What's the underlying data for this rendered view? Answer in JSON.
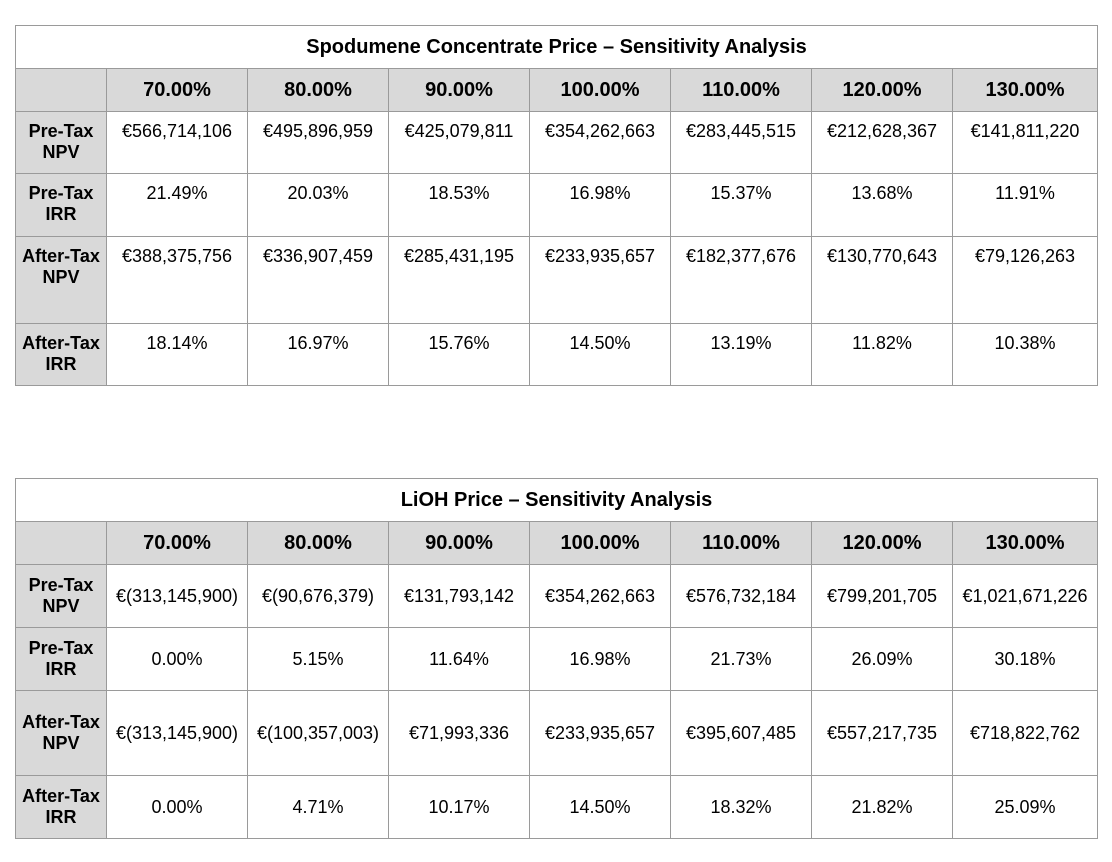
{
  "columns": [
    "70.00%",
    "80.00%",
    "90.00%",
    "100.00%",
    "110.00%",
    "120.00%",
    "130.00%"
  ],
  "row_labels": {
    "pre_tax_npv": "Pre-Tax NPV",
    "pre_tax_irr": "Pre-Tax IRR",
    "after_tax_npv": "After-Tax NPV",
    "after_tax_irr": "After-Tax IRR"
  },
  "table1": {
    "title": "Spodumene Concentrate Price – Sensitivity Analysis",
    "pre_tax_npv": [
      "€566,714,106",
      "€495,896,959",
      "€425,079,811",
      "€354,262,663",
      "€283,445,515",
      "€212,628,367",
      "€141,811,220"
    ],
    "pre_tax_irr": [
      "21.49%",
      "20.03%",
      "18.53%",
      "16.98%",
      "15.37%",
      "13.68%",
      "11.91%"
    ],
    "after_tax_npv": [
      "€388,375,756",
      "€336,907,459",
      "€285,431,195",
      "€233,935,657",
      "€182,377,676",
      "€130,770,643",
      "€79,126,263"
    ],
    "after_tax_irr": [
      "18.14%",
      "16.97%",
      "15.76%",
      "14.50%",
      "13.19%",
      "11.82%",
      "10.38%"
    ]
  },
  "table2": {
    "title": "LiOH Price – Sensitivity Analysis",
    "pre_tax_npv": [
      "€(313,145,900)",
      "€(90,676,379)",
      "€131,793,142",
      "€354,262,663",
      "€576,732,184",
      "€799,201,705",
      "€1,021,671,226"
    ],
    "pre_tax_irr": [
      "0.00%",
      "5.15%",
      "11.64%",
      "16.98%",
      "21.73%",
      "26.09%",
      "30.18%"
    ],
    "after_tax_npv": [
      "€(313,145,900)",
      "€(100,357,003)",
      "€71,993,336",
      "€233,935,657",
      "€395,607,485",
      "€557,217,735",
      "€718,822,762"
    ],
    "after_tax_irr": [
      "0.00%",
      "4.71%",
      "10.17%",
      "14.50%",
      "18.32%",
      "21.82%",
      "25.09%"
    ]
  }
}
